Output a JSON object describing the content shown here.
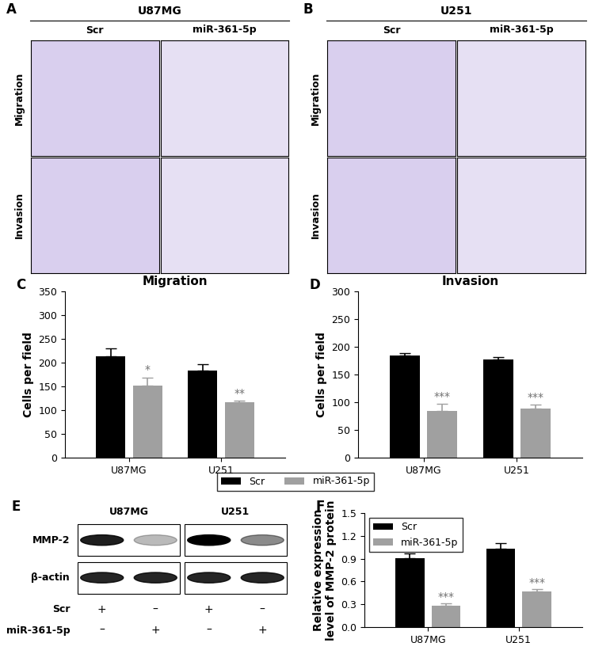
{
  "image_panels": [
    {
      "letter": "A",
      "title": "U87MG",
      "columns": [
        "Scr",
        "miR-361-5p"
      ],
      "rows": [
        "Migration",
        "Invasion"
      ]
    },
    {
      "letter": "B",
      "title": "U251",
      "columns": [
        "Scr",
        "miR-361-5p"
      ],
      "rows": [
        "Migration",
        "Invasion"
      ]
    }
  ],
  "blot": {
    "letter": "E",
    "groups": [
      "U87MG",
      "U251"
    ],
    "rows": [
      "MMP-2",
      "β-actin"
    ],
    "conditions": [
      {
        "name": "Scr",
        "marks": [
          "+",
          "–",
          "+",
          "–"
        ]
      },
      {
        "name": "miR-361-5p",
        "marks": [
          "–",
          "+",
          "–",
          "+"
        ]
      }
    ]
  },
  "chart_data": [
    {
      "letter": "C",
      "type": "bar",
      "title": "Migration",
      "y_label": "Cells per field",
      "categories": [
        "U87MG",
        "U251"
      ],
      "series": [
        {
          "name": "Scr",
          "color": "#000000",
          "values": [
            213,
            183
          ],
          "errors": [
            17,
            14
          ],
          "significance": [
            null,
            null
          ]
        },
        {
          "name": "miR-361-5p",
          "color": "#a0a0a0",
          "values": [
            151,
            117
          ],
          "errors": [
            18,
            3
          ],
          "significance": [
            "*",
            "**"
          ]
        }
      ],
      "ylim": [
        0,
        350
      ],
      "yticks": [
        0,
        50,
        100,
        150,
        200,
        250,
        300,
        350
      ],
      "legend": "center"
    },
    {
      "letter": "D",
      "type": "bar",
      "title": "Invasion",
      "y_label": "Cells per field",
      "categories": [
        "U87MG",
        "U251"
      ],
      "series": [
        {
          "name": "Scr",
          "color": "#000000",
          "values": [
            184,
            177
          ],
          "errors": [
            4,
            4
          ],
          "significance": [
            null,
            null
          ]
        },
        {
          "name": "miR-361-5p",
          "color": "#a0a0a0",
          "values": [
            85,
            89
          ],
          "errors": [
            12,
            7
          ],
          "significance": [
            "***",
            "***"
          ]
        }
      ],
      "ylim": [
        0,
        300
      ],
      "yticks": [
        0,
        50,
        100,
        150,
        200,
        250,
        300
      ]
    },
    {
      "letter": "F",
      "type": "bar",
      "y_label": "Relative expression\nlevel of MMP-2 protein",
      "categories": [
        "U87MG",
        "U251"
      ],
      "series": [
        {
          "name": "Scr",
          "color": "#000000",
          "values": [
            0.91,
            1.03
          ],
          "errors": [
            0.06,
            0.07
          ],
          "significance": [
            null,
            null
          ]
        },
        {
          "name": "miR-361-5p",
          "color": "#a0a0a0",
          "values": [
            0.28,
            0.47
          ],
          "errors": [
            0.03,
            0.03
          ],
          "significance": [
            "***",
            "***"
          ]
        }
      ],
      "ylim": [
        0.0,
        1.5
      ],
      "yticks": [
        0.0,
        0.3,
        0.6,
        0.9,
        1.2,
        1.5
      ],
      "legend": "upper left"
    }
  ]
}
